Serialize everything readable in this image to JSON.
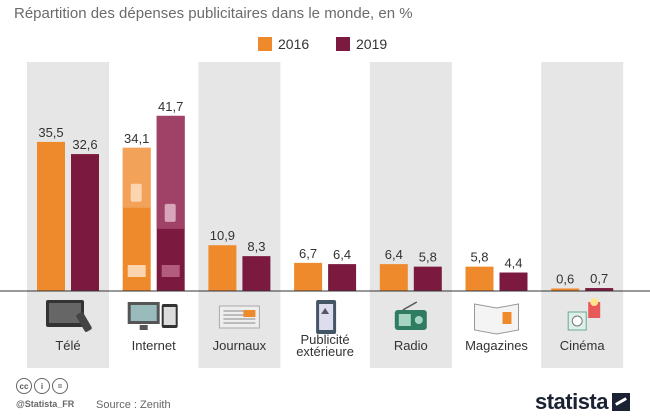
{
  "title": "Répartition des dépenses publicitaires dans le monde, en %",
  "legend": {
    "y2016": "2016",
    "y2019": "2019"
  },
  "colors": {
    "y2016": "#ee8a2c",
    "y2019": "#7b1a3e",
    "panel": "#e6e6e6"
  },
  "chart_data": {
    "type": "bar",
    "title": "Répartition des dépenses publicitaires dans le monde, en %",
    "categories": [
      "Télé",
      "Internet",
      "Journaux",
      "Publicité extérieure",
      "Radio",
      "Magazines",
      "Cinéma"
    ],
    "series": [
      {
        "name": "2016",
        "values": [
          35.5,
          34.1,
          10.9,
          6.7,
          6.4,
          5.8,
          0.6
        ]
      },
      {
        "name": "2019",
        "values": [
          32.6,
          41.7,
          8.3,
          6.4,
          5.8,
          4.4,
          0.7
        ]
      }
    ],
    "value_labels": {
      "2016": [
        "35,5",
        "34,1",
        "10,9",
        "6,7",
        "6,4",
        "5,8",
        "0,6"
      ],
      "2019": [
        "32,6",
        "41,7",
        "8,3",
        "6,4",
        "5,8",
        "4,4",
        "0,7"
      ]
    },
    "category_labels": [
      [
        "Télé"
      ],
      [
        "Internet"
      ],
      [
        "Journaux"
      ],
      [
        "Publicité",
        "extérieure"
      ],
      [
        "Radio"
      ],
      [
        "Magazines"
      ],
      [
        "Cinéma"
      ]
    ],
    "icons": [
      "tv-icon",
      "computer-devices-icon",
      "newspaper-icon",
      "billboard-icon",
      "radio-icon",
      "magazine-icon",
      "cinema-icon"
    ],
    "ylim": [
      0,
      50
    ],
    "xlabel": "",
    "ylabel": ""
  },
  "footer": {
    "handle": "@Statista_FR",
    "source": "Source : Zenith",
    "brand": "statista"
  }
}
